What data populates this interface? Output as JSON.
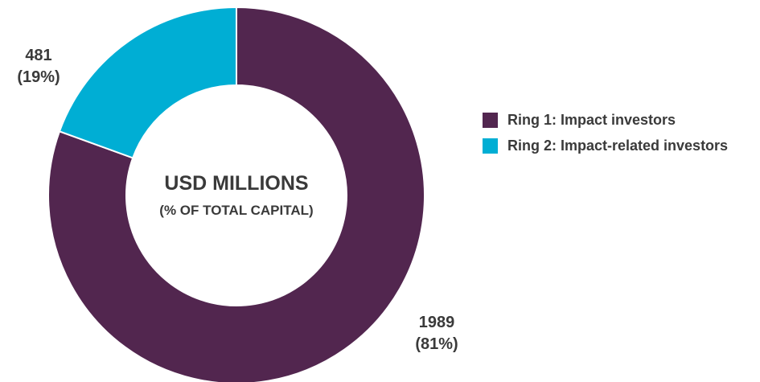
{
  "chart_data": {
    "type": "pie",
    "style": "donut",
    "center_label": {
      "title": "USD MILLIONS",
      "subtitle": "(% OF TOTAL CAPITAL)"
    },
    "slices": [
      {
        "name": "Ring 1: Impact investors",
        "value": 1989,
        "percent_label": "(81%)",
        "value_label": "1989",
        "color": "#52264f"
      },
      {
        "name": "Ring 2: Impact-related investors",
        "value": 481,
        "percent_label": "(19%)",
        "value_label": "481",
        "color": "#00aed4"
      }
    ],
    "legend": {
      "placement": "right",
      "entries": [
        "Ring 1: Impact investors",
        "Ring 2: Impact-related investors"
      ]
    }
  }
}
